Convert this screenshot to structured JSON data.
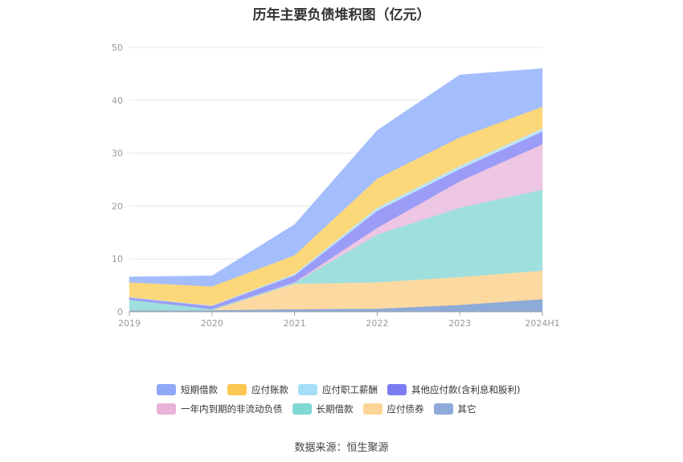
{
  "chart_data": {
    "type": "area",
    "stacked": true,
    "title": "历年主要负债堆积图（亿元）",
    "x": [
      "2019",
      "2020",
      "2021",
      "2022",
      "2023",
      "2024H1"
    ],
    "ylim": [
      0,
      50
    ],
    "yticks": [
      0,
      10,
      20,
      30,
      40,
      50
    ],
    "grid": true,
    "legend_position": "bottom",
    "series": [
      {
        "name": "其它",
        "color": "#8eaad8",
        "values": [
          0.3,
          0.3,
          0.5,
          0.6,
          1.3,
          2.4
        ]
      },
      {
        "name": "应付债券",
        "color": "#fcd9a1",
        "values": [
          0,
          0,
          4.8,
          5.0,
          5.3,
          5.4
        ]
      },
      {
        "name": "长期借款",
        "color": "#9fe0df",
        "values": [
          2.0,
          0.2,
          0.2,
          9.0,
          13.1,
          15.3
        ]
      },
      {
        "name": "一年内到期的非流动负债",
        "color": "#ecc6e2",
        "values": [
          0,
          0,
          0.1,
          1.3,
          5.0,
          8.6
        ]
      },
      {
        "name": "其他应付款(含利息和股利)",
        "color": "#9b9cf7",
        "values": [
          0.4,
          0.6,
          1.3,
          3.2,
          2.3,
          2.4
        ]
      },
      {
        "name": "应付职工薪酬",
        "color": "#bde5f9",
        "values": [
          0.1,
          0.1,
          0.3,
          0.6,
          0.6,
          0.6
        ]
      },
      {
        "name": "应付账款",
        "color": "#fdd87a",
        "values": [
          2.8,
          3.6,
          3.5,
          5.5,
          5.4,
          4.1
        ]
      },
      {
        "name": "短期借款",
        "color": "#a4bdfc",
        "values": [
          1.0,
          2.0,
          5.8,
          9.1,
          11.8,
          7.2
        ]
      }
    ],
    "legend_rows": [
      [
        {
          "name": "短期借款",
          "color": "#8fa9f6"
        },
        {
          "name": "应付账款",
          "color": "#fcc74f"
        },
        {
          "name": "应付职工薪酬",
          "color": "#a6def8"
        },
        {
          "name": "其他应付款(含利息和股利)",
          "color": "#7b7cf2"
        }
      ],
      [
        {
          "name": "一年内到期的非流动负债",
          "color": "#e8b2d9"
        },
        {
          "name": "长期借款",
          "color": "#7fd8d4"
        },
        {
          "name": "应付债券",
          "color": "#fdd596"
        },
        {
          "name": "其它",
          "color": "#8eaad8"
        }
      ]
    ]
  },
  "source": "数据来源：恒生聚源"
}
